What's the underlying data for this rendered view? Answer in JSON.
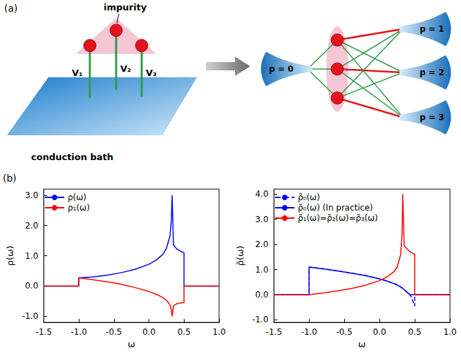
{
  "diagram": {
    "label": "(a)",
    "impurity": "impurity",
    "couplings": [
      "V₁",
      "V₂",
      "V₃"
    ],
    "bath": "conduction bath",
    "baths": [
      "p = 0",
      "p = 1",
      "p = 2",
      "p = 3"
    ]
  },
  "panel_b": {
    "label": "(b)"
  },
  "chart_data": [
    {
      "type": "line",
      "x_label": "ω",
      "y_label": "ρ(ω)",
      "xlim": [
        -1.5,
        1.0
      ],
      "xticks": [
        -1.5,
        {
          "value": -1,
          "label": "-1.0"
        },
        -0.5,
        {
          "value": 0,
          "label": "0.0"
        },
        0.5,
        {
          "value": 1,
          "label": "1.0"
        }
      ],
      "ylim": [
        -1.2,
        3.2
      ],
      "yticks": [
        {
          "value": -1,
          "label": "-1.0"
        },
        {
          "value": 0,
          "label": "0.0"
        },
        {
          "value": 1,
          "label": "1.0"
        },
        {
          "value": 2,
          "label": "2.0"
        },
        {
          "value": 3,
          "label": "3.0"
        }
      ],
      "grid": false,
      "legend": "upper left",
      "x": [
        -1.5,
        -1.0,
        -1.0,
        -0.8,
        -0.6,
        -0.4,
        -0.2,
        0.0,
        0.1,
        0.2,
        0.25,
        0.3,
        0.32,
        0.33,
        0.35,
        0.4,
        0.45,
        0.5,
        0.5,
        1.0
      ],
      "series": [
        {
          "name": "ρ(ω)",
          "color": "#0000ff",
          "line_style": "solid",
          "values": [
            0,
            0,
            0.27,
            0.3,
            0.36,
            0.44,
            0.55,
            0.72,
            0.85,
            1.05,
            1.25,
            1.65,
            2.2,
            3.0,
            1.35,
            1.22,
            1.15,
            1.1,
            0,
            0
          ]
        },
        {
          "name": "ρ₁(ω)",
          "color": "#ff0000",
          "line_style": "solid",
          "values": [
            0,
            0,
            0.27,
            0.21,
            0.14,
            0.06,
            -0.05,
            -0.18,
            -0.27,
            -0.38,
            -0.47,
            -0.62,
            -0.8,
            -1.0,
            -0.65,
            -0.58,
            -0.56,
            -0.55,
            0,
            0
          ]
        }
      ]
    },
    {
      "type": "line",
      "x_label": "ω",
      "y_label": "ρ̃(ω)",
      "xlim": [
        -1.5,
        1.0
      ],
      "xticks": [
        -1.5,
        {
          "value": -1,
          "label": "-1.0"
        },
        -0.5,
        {
          "value": 0,
          "label": "0.0"
        },
        0.5,
        {
          "value": 1,
          "label": "1.0"
        }
      ],
      "ylim": [
        -1.1,
        4.2
      ],
      "yticks": [
        {
          "value": -1,
          "label": "-1.0"
        },
        {
          "value": 0,
          "label": "0.0"
        },
        {
          "value": 1,
          "label": "1.0"
        },
        {
          "value": 2,
          "label": "2.0"
        },
        {
          "value": 3,
          "label": "3.0"
        },
        {
          "value": 4,
          "label": "4.0"
        }
      ],
      "grid": false,
      "legend": "upper left",
      "x": [
        -1.5,
        -1.0,
        -1.0,
        -0.8,
        -0.6,
        -0.4,
        -0.2,
        0.0,
        0.1,
        0.2,
        0.25,
        0.3,
        0.32,
        0.33,
        0.35,
        0.4,
        0.43,
        0.45,
        0.5,
        0.5,
        1.0
      ],
      "series": [
        {
          "name": "ρ̃₀(ω)",
          "color": "#0000ff",
          "line_style": "dashed",
          "values": [
            0,
            0,
            1.1,
            1.03,
            0.95,
            0.86,
            0.76,
            0.63,
            0.55,
            0.45,
            0.39,
            0.31,
            0.27,
            0.25,
            0.2,
            0.08,
            0.0,
            -0.08,
            -0.45,
            0,
            0
          ]
        },
        {
          "name": "ρ̃₀(ω) (In practice)",
          "color": "#0000ff",
          "line_style": "solid",
          "values": [
            0,
            0,
            1.1,
            1.03,
            0.95,
            0.86,
            0.76,
            0.63,
            0.55,
            0.45,
            0.39,
            0.31,
            0.27,
            0.25,
            0.2,
            0.08,
            0,
            0,
            0,
            0,
            0
          ]
        },
        {
          "name": "ρ̃₁(ω)=ρ̃₂(ω)=ρ̃₃(ω)",
          "color": "#ff0000",
          "line_style": "solid",
          "values": [
            0,
            0,
            0,
            0.07,
            0.15,
            0.25,
            0.38,
            0.56,
            0.7,
            0.9,
            1.1,
            1.6,
            2.4,
            4.0,
            1.95,
            1.8,
            1.72,
            1.68,
            1.6,
            0,
            0
          ]
        }
      ]
    }
  ]
}
